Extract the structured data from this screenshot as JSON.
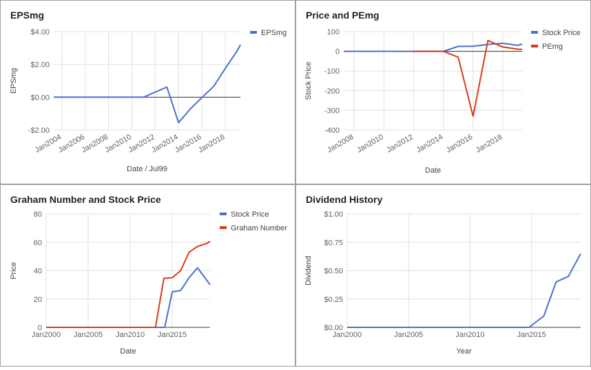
{
  "colors": {
    "blue": "#4a6fd0",
    "red": "#dc3912"
  },
  "panels": [
    {
      "title": "EPSmg",
      "chart_data": {
        "type": "line",
        "xlabel": "Date / Jul99",
        "ylabel": "EPSmg",
        "xlim": [
          2003.3,
          2019.3
        ],
        "ylim": [
          -2,
          4
        ],
        "y_ticks": [
          -2,
          0,
          2,
          4
        ],
        "y_tick_labels": [
          "-$2.00",
          "$0.00",
          "$2.00",
          "$4.00"
        ],
        "x_ticks": [
          2004,
          2006,
          2008,
          2010,
          2012,
          2014,
          2016,
          2018
        ],
        "x_tick_labels": [
          "Jan2004",
          "Jan2006",
          "Jan2008",
          "Jan2010",
          "Jan2012",
          "Jan2014",
          "Jan2016",
          "Jan2018"
        ],
        "legend_position": "right",
        "series": [
          {
            "name": "EPSmg",
            "color": "#4a6fd0",
            "x": [
              2003.3,
              2011,
              2013,
              2014,
              2015,
              2016,
              2017,
              2018,
              2019,
              2019.3
            ],
            "y": [
              0,
              0,
              0.62,
              -1.55,
              -0.72,
              -0.02,
              0.65,
              1.75,
              2.8,
              3.2
            ]
          }
        ]
      }
    },
    {
      "title": "Price and PEmg",
      "chart_data": {
        "type": "line",
        "xlabel": "Date",
        "ylabel": "Stock Price",
        "xlim": [
          2007.3,
          2019.3
        ],
        "ylim": [
          -400,
          100
        ],
        "y_ticks": [
          -400,
          -300,
          -200,
          -100,
          0,
          100
        ],
        "y_tick_labels": [
          "-400",
          "-300",
          "-200",
          "-100",
          "0",
          "100"
        ],
        "x_ticks": [
          2008,
          2010,
          2012,
          2014,
          2016,
          2018
        ],
        "x_tick_labels": [
          "Jan2008",
          "Jan2010",
          "Jan2012",
          "Jan2014",
          "Jan2016",
          "Jan2018"
        ],
        "legend_position": "right",
        "series": [
          {
            "name": "Stock Price",
            "color": "#4a6fd0",
            "x": [
              2007.3,
              2014,
              2015,
              2016,
              2017,
              2018,
              2019,
              2019.3
            ],
            "y": [
              0,
              0,
              25,
              26,
              35,
              41,
              30,
              37
            ]
          },
          {
            "name": "PEmg",
            "color": "#dc3912",
            "x": [
              2012,
              2014,
              2015,
              2016,
              2017,
              2018,
              2019,
              2019.3
            ],
            "y": [
              0,
              0,
              -30,
              -330,
              55,
              22,
              11,
              10
            ]
          }
        ]
      }
    },
    {
      "title": "Graham Number and Stock Price",
      "chart_data": {
        "type": "line",
        "xlabel": "Date",
        "ylabel": "Price",
        "xlim": [
          2000,
          2019.5
        ],
        "ylim": [
          0,
          80
        ],
        "y_ticks": [
          0,
          20,
          40,
          60,
          80
        ],
        "y_tick_labels": [
          "0",
          "20",
          "40",
          "60",
          "80"
        ],
        "x_ticks": [
          2000,
          2005,
          2010,
          2015
        ],
        "x_tick_labels": [
          "Jan2000",
          "Jan2005",
          "Jan2010",
          "Jan2015"
        ],
        "legend_position": "right",
        "series": [
          {
            "name": "Stock Price",
            "color": "#4a6fd0",
            "x": [
              2000,
              2014.1,
              2015,
              2016,
              2017,
              2018,
              2019,
              2019.5
            ],
            "y": [
              0,
              0,
              25,
              26,
              35,
              42,
              34,
              30
            ]
          },
          {
            "name": "Graham Number",
            "color": "#dc3912",
            "x": [
              2000,
              2013,
              2014,
              2015,
              2016,
              2017,
              2018,
              2019,
              2019.5
            ],
            "y": [
              0,
              0,
              34.5,
              35,
              40,
              53,
              57,
              59,
              60.5
            ]
          }
        ]
      }
    },
    {
      "title": "Dividend History",
      "chart_data": {
        "type": "line",
        "xlabel": "Year",
        "ylabel": "Dividend",
        "xlim": [
          2000,
          2019
        ],
        "ylim": [
          0,
          1
        ],
        "y_ticks": [
          0,
          0.25,
          0.5,
          0.75,
          1
        ],
        "y_tick_labels": [
          "$0.00",
          "$0.25",
          "$0.50",
          "$0.75",
          "$1.00"
        ],
        "x_ticks": [
          2000,
          2005,
          2010,
          2015
        ],
        "x_tick_labels": [
          "Jan2000",
          "Jan2005",
          "Jan2010",
          "Jan2015"
        ],
        "legend_position": "none",
        "series": [
          {
            "color": "#4a6fd0",
            "x": [
              2000,
              2013,
              2014.8,
              2016,
              2017,
              2018,
              2019
            ],
            "y": [
              0,
              0,
              0,
              0.1,
              0.4,
              0.45,
              0.65
            ]
          }
        ]
      }
    }
  ]
}
